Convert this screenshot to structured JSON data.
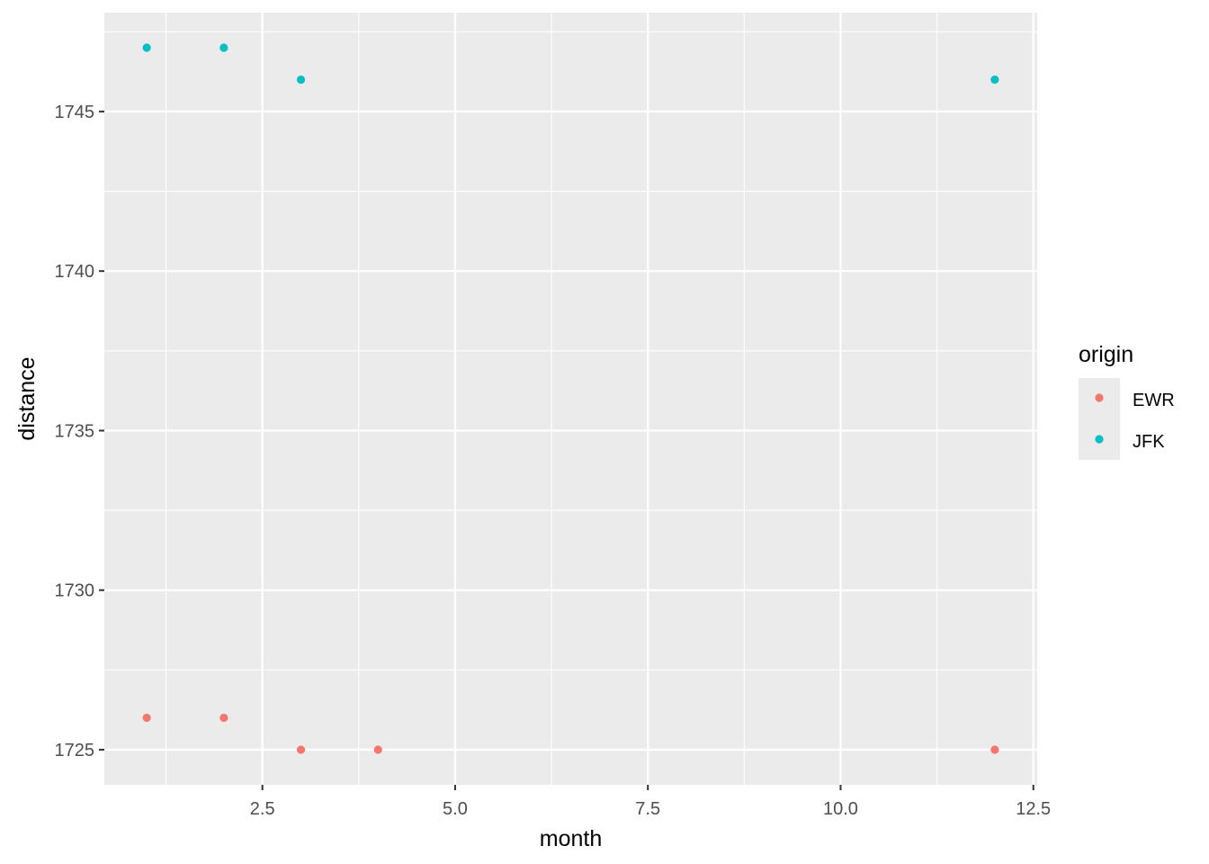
{
  "chart_data": {
    "type": "scatter",
    "title": "",
    "xlabel": "month",
    "ylabel": "distance",
    "xlim": [
      0.45,
      12.55
    ],
    "ylim": [
      1723.9,
      1748.1
    ],
    "x_ticks": [
      2.5,
      5.0,
      7.5,
      10.0,
      12.5
    ],
    "x_tick_labels": [
      "2.5",
      "5.0",
      "7.5",
      "10.0",
      "12.5"
    ],
    "y_ticks": [
      1725,
      1730,
      1735,
      1740,
      1745
    ],
    "y_tick_labels": [
      "1725",
      "1730",
      "1735",
      "1740",
      "1745"
    ],
    "grid": true,
    "legend": {
      "title": "origin",
      "placement": "right"
    },
    "colors": {
      "panel": "#EBEBEB",
      "grid": "#FFFFFF",
      "tick": "#333333"
    },
    "series": [
      {
        "name": "EWR",
        "color": "#F8766D",
        "points": [
          {
            "x": 1,
            "y": 1726
          },
          {
            "x": 2,
            "y": 1726
          },
          {
            "x": 3,
            "y": 1725
          },
          {
            "x": 4,
            "y": 1725
          },
          {
            "x": 12,
            "y": 1725
          }
        ]
      },
      {
        "name": "JFK",
        "color": "#00BFC4",
        "points": [
          {
            "x": 1,
            "y": 1747
          },
          {
            "x": 2,
            "y": 1747
          },
          {
            "x": 3,
            "y": 1746
          },
          {
            "x": 12,
            "y": 1746
          }
        ]
      }
    ]
  }
}
